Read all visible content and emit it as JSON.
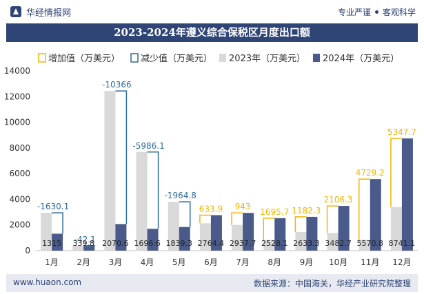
{
  "header": {
    "brand": "华经情报网",
    "tag1": "专业严谨",
    "tag2": "客观科学"
  },
  "footer": {
    "url": "www.huaon.com",
    "source": "数据来源：中国海关，华经产业研究院整理"
  },
  "colors": {
    "increase": "#f5b400",
    "decrease": "#2e6c9c",
    "y2023": "#d9d9d9",
    "y2024": "#4a5a8a",
    "title_bg": "#2f4576",
    "footer_bg": "#e7eaf1"
  },
  "chart_data": {
    "type": "bar",
    "title": "2023-2024年遵义综合保税区月度出口额",
    "categories": [
      "1月",
      "2月",
      "3月",
      "4月",
      "5月",
      "6月",
      "7月",
      "8月",
      "9月",
      "10月",
      "11月",
      "12月"
    ],
    "series": [
      {
        "name": "增加值（万美元）",
        "values": [
          null,
          null,
          null,
          null,
          null,
          633.9,
          943,
          1695.7,
          1182.3,
          2106.3,
          4729.2,
          5347.7
        ],
        "labels": [
          "",
          "",
          "",
          "",
          "",
          "633.9",
          "943",
          "1695.7",
          "1182.3",
          "2106.3",
          "4729.2",
          "5347.7"
        ]
      },
      {
        "name": "减少值（万美元）",
        "values": [
          1630.1,
          42.1,
          10366,
          5986.1,
          1964.8,
          null,
          null,
          null,
          null,
          null,
          null,
          null
        ],
        "labels": [
          "-1630.1",
          "-42.1",
          "-10366",
          "-5986.1",
          "-1964.8",
          "",
          "",
          "",
          "",
          "",
          "",
          ""
        ]
      },
      {
        "name": "2023年（万美元）",
        "values": [
          2945.1,
          381.9,
          12436.6,
          7682.7,
          3804.1,
          2130.5,
          1994.7,
          832.4,
          1451,
          1376.4,
          841.6,
          3393.4
        ]
      },
      {
        "name": "2024年（万美元）",
        "values": [
          1315,
          339.8,
          2070.6,
          1696.6,
          1839.3,
          2764.4,
          2937.7,
          2528.1,
          2633.3,
          3482.7,
          5570.8,
          8741.1
        ],
        "labels": [
          "1315",
          "339.8",
          "2070.6",
          "1696.6",
          "1839.3",
          "2764.4",
          "2937.7",
          "2528.1",
          "2633.3",
          "3482.7",
          "5570.8",
          "8741.1"
        ]
      }
    ],
    "ylim": [
      0,
      14000
    ],
    "yticks": [
      0,
      2000,
      4000,
      6000,
      8000,
      10000,
      12000,
      14000
    ],
    "ytick_labels": [
      "0",
      "2000",
      "4000",
      "6000",
      "8000",
      "10000",
      "12000",
      "14000"
    ],
    "legend_position": "top",
    "grid": false
  }
}
